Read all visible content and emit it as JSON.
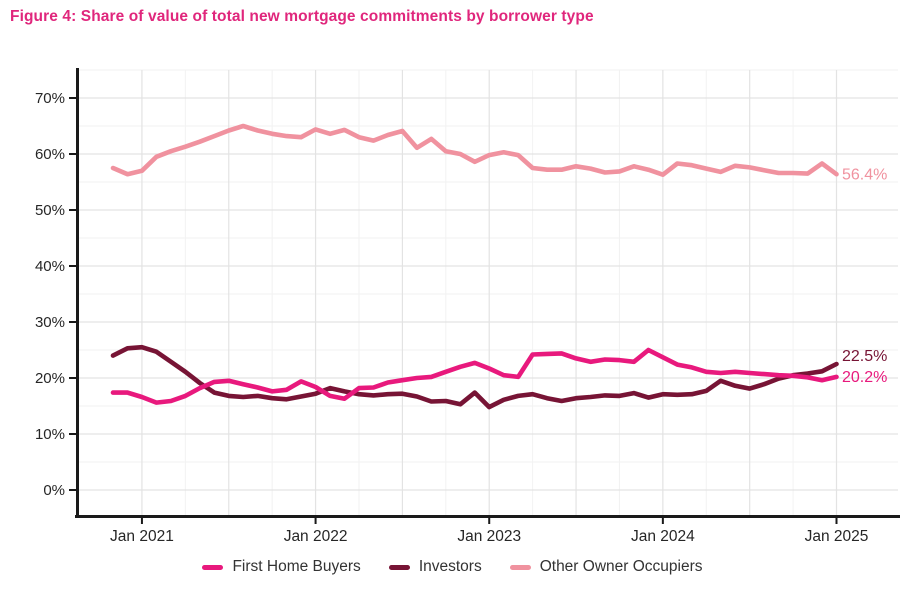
{
  "title": "Figure 4:  Share of value of total new mortgage commitments by borrower type",
  "colors": {
    "title": "#E0267C",
    "axis": "#1a1a1a",
    "tick_text": "#262626",
    "grid_major": "#e3e3e3",
    "grid_minor": "#f2f2f2",
    "legend_text": "#333333",
    "first_home_buyers": "#E8197D",
    "investors": "#771435",
    "other_owner_occupiers": "#F0929F"
  },
  "chart_data": {
    "type": "line",
    "title": "Figure 4:  Share of value of total new mortgage commitments by borrower type",
    "xlabel": "",
    "ylabel": "",
    "ylim": [
      0,
      70
    ],
    "y_tick_labels": [
      "0%",
      "10%",
      "20%",
      "30%",
      "40%",
      "50%",
      "60%",
      "70%"
    ],
    "y_tick_values": [
      0,
      10,
      20,
      30,
      40,
      50,
      60,
      70
    ],
    "grid": "horizontal major every 10% with minor every 5%; vertical every 6 months",
    "legend_position": "bottom",
    "x": [
      "Nov 2020",
      "Dec 2020",
      "Jan 2021",
      "Feb 2021",
      "Mar 2021",
      "Apr 2021",
      "May 2021",
      "Jun 2021",
      "Jul 2021",
      "Aug 2021",
      "Sep 2021",
      "Oct 2021",
      "Nov 2021",
      "Dec 2021",
      "Jan 2022",
      "Feb 2022",
      "Mar 2022",
      "Apr 2022",
      "May 2022",
      "Jun 2022",
      "Jul 2022",
      "Aug 2022",
      "Sep 2022",
      "Oct 2022",
      "Nov 2022",
      "Dec 2022",
      "Jan 2023",
      "Feb 2023",
      "Mar 2023",
      "Apr 2023",
      "May 2023",
      "Jun 2023",
      "Jul 2023",
      "Aug 2023",
      "Sep 2023",
      "Oct 2023",
      "Nov 2023",
      "Dec 2023",
      "Jan 2024",
      "Feb 2024",
      "Mar 2024",
      "Apr 2024",
      "May 2024",
      "Jun 2024",
      "Jul 2024",
      "Aug 2024",
      "Sep 2024",
      "Oct 2024",
      "Nov 2024",
      "Dec 2024",
      "Jan 2025"
    ],
    "x_ticks": [
      {
        "index": 2,
        "label": "Jan 2021"
      },
      {
        "index": 14,
        "label": "Jan 2022"
      },
      {
        "index": 26,
        "label": "Jan 2023"
      },
      {
        "index": 38,
        "label": "Jan 2024"
      },
      {
        "index": 50,
        "label": "Jan 2025"
      }
    ],
    "series": [
      {
        "name": "First Home Buyers",
        "color": "#E8197D",
        "end_label": "20.2%",
        "values": [
          17.4,
          17.4,
          16.6,
          15.6,
          15.9,
          16.8,
          18.2,
          19.3,
          19.5,
          18.9,
          18.3,
          17.6,
          17.9,
          19.4,
          18.4,
          16.8,
          16.3,
          18.2,
          18.3,
          19.2,
          19.6,
          20.0,
          20.2,
          21.1,
          22.0,
          22.7,
          21.7,
          20.5,
          20.2,
          24.2,
          24.3,
          24.4,
          23.5,
          22.9,
          23.3,
          23.2,
          22.9,
          25.0,
          23.7,
          22.4,
          21.9,
          21.1,
          20.9,
          21.1,
          20.9,
          20.7,
          20.5,
          20.4,
          20.1,
          19.6,
          20.2
        ]
      },
      {
        "name": "Investors",
        "color": "#771435",
        "end_label": "22.5%",
        "values": [
          24.0,
          25.3,
          25.5,
          24.7,
          22.9,
          21.1,
          19.1,
          17.4,
          16.8,
          16.6,
          16.8,
          16.4,
          16.2,
          16.7,
          17.2,
          18.2,
          17.6,
          17.1,
          16.9,
          17.1,
          17.2,
          16.7,
          15.8,
          15.9,
          15.3,
          17.4,
          14.8,
          16.1,
          16.8,
          17.1,
          16.4,
          15.9,
          16.4,
          16.6,
          16.9,
          16.8,
          17.3,
          16.5,
          17.1,
          17.0,
          17.1,
          17.7,
          19.5,
          18.6,
          18.1,
          18.9,
          19.9,
          20.5,
          20.8,
          21.2,
          22.5
        ]
      },
      {
        "name": "Other Owner Occupiers",
        "color": "#F0929F",
        "end_label": "56.4%",
        "values": [
          57.5,
          56.4,
          57.0,
          59.5,
          60.5,
          61.3,
          62.2,
          63.2,
          64.2,
          65.0,
          64.2,
          63.6,
          63.2,
          63.0,
          64.4,
          63.6,
          64.3,
          63.0,
          62.4,
          63.4,
          64.1,
          61.1,
          62.7,
          60.5,
          60.0,
          58.6,
          59.8,
          60.3,
          59.8,
          57.5,
          57.2,
          57.2,
          57.8,
          57.4,
          56.7,
          56.9,
          57.8,
          57.2,
          56.3,
          58.3,
          58.0,
          57.4,
          56.8,
          57.9,
          57.6,
          57.1,
          56.6,
          56.6,
          56.5,
          58.3,
          56.4
        ]
      }
    ],
    "legend": [
      "First Home Buyers",
      "Investors",
      "Other Owner Occupiers"
    ]
  }
}
